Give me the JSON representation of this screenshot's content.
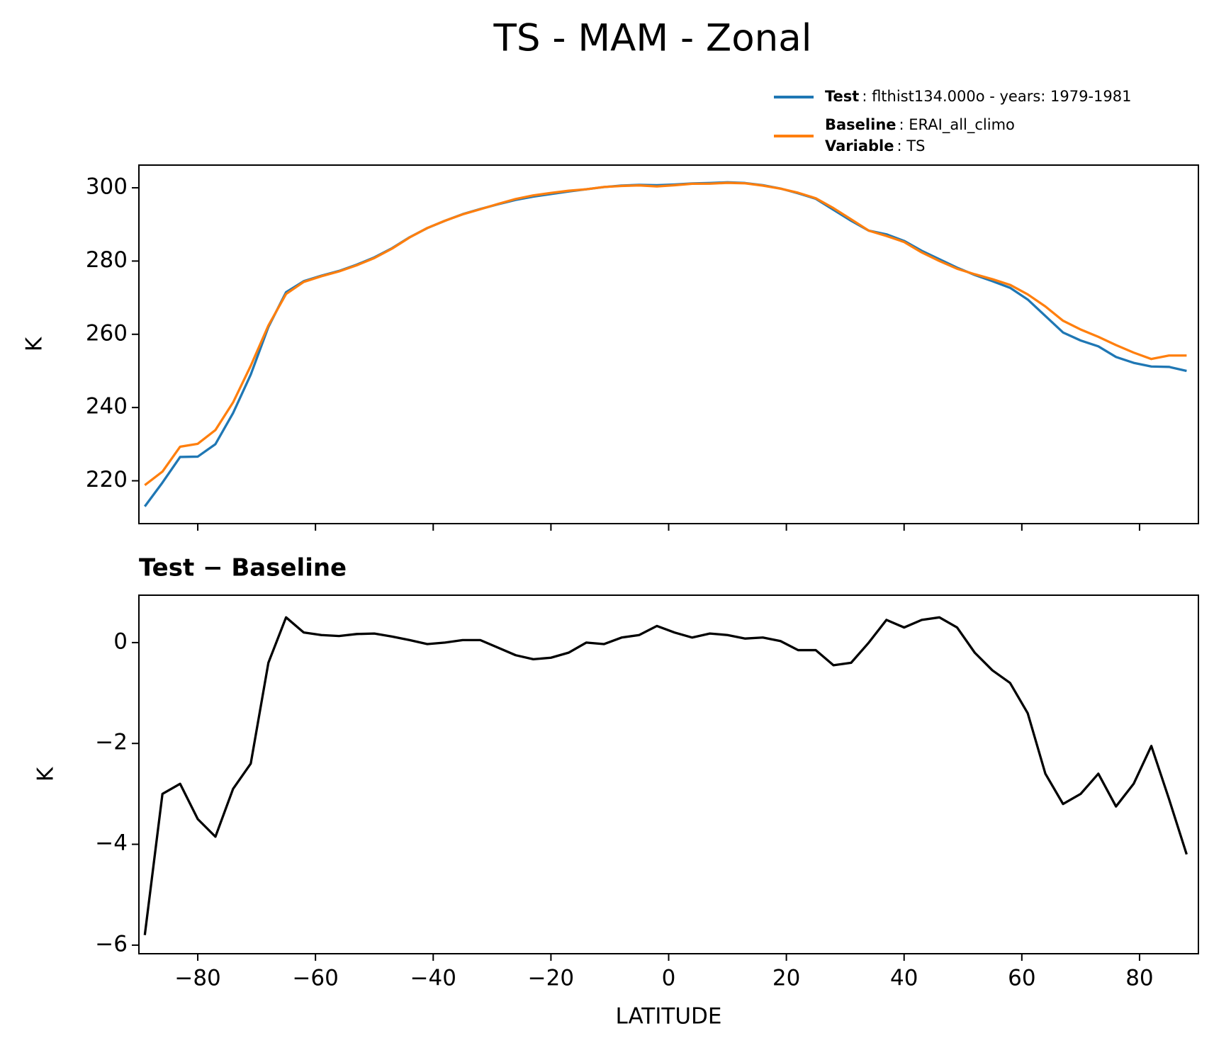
{
  "title": "TS - MAM - Zonal",
  "legend": {
    "extra": {
      "name": "Variable",
      "text": ": TS"
    }
  },
  "chart_data": [
    {
      "type": "line",
      "x": [
        -89,
        -86,
        -83,
        -80,
        -77,
        -74,
        -71,
        -68,
        -65,
        -62,
        -59,
        -56,
        -53,
        -50,
        -47,
        -44,
        -41,
        -38,
        -35,
        -32,
        -29,
        -26,
        -23,
        -20,
        -17,
        -14,
        -11,
        -8,
        -5,
        -2,
        1,
        4,
        7,
        10,
        13,
        16,
        19,
        22,
        25,
        28,
        31,
        34,
        37,
        40,
        43,
        46,
        49,
        52,
        55,
        58,
        61,
        64,
        67,
        70,
        73,
        76,
        79,
        82,
        85,
        88
      ],
      "series": [
        {
          "name": "Test",
          "description": ": flthist134.000o - years: 1979-1981",
          "color": "#1f77b4",
          "values": [
            213,
            219.5,
            226.5,
            226.6,
            230,
            238.5,
            249,
            262,
            271.5,
            274.5,
            276,
            277.3,
            279,
            281,
            283.5,
            286.5,
            289,
            291,
            292.8,
            294.2,
            295.5,
            296.7,
            297.6,
            298.3,
            299,
            299.6,
            300.2,
            300.6,
            300.8,
            300.7,
            300.9,
            301.2,
            301.3,
            301.5,
            301.3,
            300.7,
            299.8,
            298.5,
            297,
            294,
            291,
            288.3,
            287.3,
            285.5,
            282.8,
            280.5,
            278.2,
            276.2,
            274.5,
            272.7,
            269.5,
            265,
            260.5,
            258.3,
            256.7,
            253.8,
            252.2,
            251.2,
            251.1,
            250
          ]
        },
        {
          "name": "Baseline",
          "description": ": ERAI_all_climo",
          "color": "#ff7f0e",
          "values": [
            218.8,
            222.5,
            229.3,
            230.1,
            233.85,
            241.4,
            251.4,
            262.4,
            271,
            274.3,
            275.85,
            277.17,
            278.83,
            280.82,
            283.38,
            286.45,
            289.03,
            291,
            292.75,
            294.15,
            295.6,
            296.95,
            297.93,
            298.6,
            299.2,
            299.6,
            300.23,
            300.5,
            300.65,
            300.37,
            300.7,
            301.1,
            301.12,
            301.35,
            301.22,
            300.6,
            299.77,
            298.65,
            297.15,
            294.45,
            291.4,
            288.3,
            286.85,
            285.2,
            282.35,
            280,
            277.9,
            276.4,
            275.05,
            273.5,
            270.9,
            267.6,
            263.7,
            261.3,
            259.3,
            257.05,
            255,
            253.25,
            254.2,
            254.2
          ]
        }
      ],
      "xlim": [
        -90,
        90
      ],
      "ylim": [
        208.3,
        306.2
      ],
      "xticks": [
        -80,
        -60,
        -40,
        -20,
        0,
        20,
        40,
        60,
        80
      ],
      "yticks": [
        220,
        240,
        260,
        280,
        300
      ],
      "ylabel": "K"
    },
    {
      "type": "line",
      "title": "Test − Baseline",
      "x": [
        -89,
        -86,
        -83,
        -80,
        -77,
        -74,
        -71,
        -68,
        -65,
        -62,
        -59,
        -56,
        -53,
        -50,
        -47,
        -44,
        -41,
        -38,
        -35,
        -32,
        -29,
        -26,
        -23,
        -20,
        -17,
        -14,
        -11,
        -8,
        -5,
        -2,
        1,
        4,
        7,
        10,
        13,
        16,
        19,
        22,
        25,
        28,
        31,
        34,
        37,
        40,
        43,
        46,
        49,
        52,
        55,
        58,
        61,
        64,
        67,
        70,
        73,
        76,
        79,
        82,
        85,
        88
      ],
      "series": [
        {
          "color": "#000000",
          "values": [
            -5.8,
            -3.0,
            -2.8,
            -3.5,
            -3.85,
            -2.9,
            -2.4,
            -0.4,
            0.5,
            0.2,
            0.15,
            0.13,
            0.17,
            0.18,
            0.12,
            0.05,
            -0.03,
            0,
            0.05,
            0.05,
            -0.1,
            -0.25,
            -0.33,
            -0.3,
            -0.2,
            0,
            -0.03,
            0.1,
            0.15,
            0.33,
            0.2,
            0.1,
            0.18,
            0.15,
            0.08,
            0.1,
            0.03,
            -0.15,
            -0.15,
            -0.45,
            -0.4,
            0,
            0.45,
            0.3,
            0.45,
            0.5,
            0.3,
            -0.2,
            -0.55,
            -0.8,
            -1.4,
            -2.6,
            -3.2,
            -3.0,
            -2.6,
            -3.25,
            -2.8,
            -2.05,
            -3.1,
            -4.2
          ]
        }
      ],
      "xlim": [
        -90,
        90
      ],
      "ylim": [
        -6.17,
        0.94
      ],
      "xticks": [
        {
          "value": -80,
          "label": "−80"
        },
        {
          "value": -60,
          "label": "−60"
        },
        {
          "value": -40,
          "label": "−40"
        },
        {
          "value": -20,
          "label": "−20"
        },
        0,
        20,
        40,
        60,
        80
      ],
      "yticks": [
        {
          "value": -6,
          "label": "−6"
        },
        {
          "value": -4,
          "label": "−4"
        },
        {
          "value": -2,
          "label": "−2"
        },
        0
      ],
      "xlabel": "LATITUDE",
      "ylabel": "K"
    }
  ]
}
